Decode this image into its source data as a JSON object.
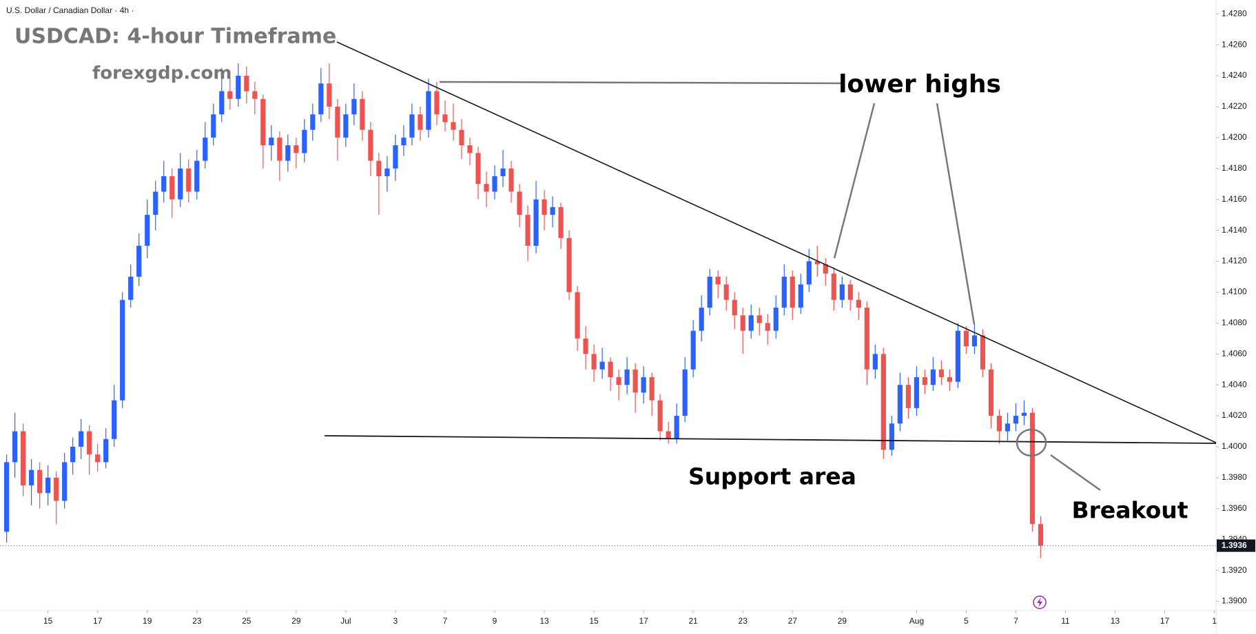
{
  "chart_data": {
    "type": "candlestick",
    "header": "U.S. Dollar / Canadian Dollar · 4h ·",
    "title": "USDCAD: 4-hour Timeframe",
    "subtitle": "forexgdp.com",
    "annotations": [
      "lower highs",
      "Support area",
      "Breakout"
    ],
    "up_color": "#2962ff",
    "down_color": "#ef5350",
    "xlim": [
      -0.8,
      146.2
    ],
    "ylim": [
      1.3894,
      1.4289
    ],
    "yticks": [
      {
        "value": 1.39,
        "label": "1.3900"
      },
      {
        "value": 1.392,
        "label": "1.3920"
      },
      {
        "value": 1.394,
        "label": "1.3940"
      },
      {
        "value": 1.396,
        "label": "1.3960"
      },
      {
        "value": 1.398,
        "label": "1.3980"
      },
      {
        "value": 1.4,
        "label": "1.4000"
      },
      {
        "value": 1.402,
        "label": "1.4020"
      },
      {
        "value": 1.404,
        "label": "1.4040"
      },
      {
        "value": 1.406,
        "label": "1.4060"
      },
      {
        "value": 1.408,
        "label": "1.4080"
      },
      {
        "value": 1.41,
        "label": "1.4100"
      },
      {
        "value": 1.412,
        "label": "1.4120"
      },
      {
        "value": 1.414,
        "label": "1.4140"
      },
      {
        "value": 1.416,
        "label": "1.4160"
      },
      {
        "value": 1.418,
        "label": "1.4180"
      },
      {
        "value": 1.42,
        "label": "1.4200"
      },
      {
        "value": 1.422,
        "label": "1.4220"
      },
      {
        "value": 1.424,
        "label": "1.4240"
      },
      {
        "value": 1.426,
        "label": "1.4260"
      },
      {
        "value": 1.428,
        "label": "1.4280"
      }
    ],
    "xticks": [
      {
        "value": 5,
        "label": "15"
      },
      {
        "value": 11,
        "label": "17"
      },
      {
        "value": 17,
        "label": "19"
      },
      {
        "value": 23,
        "label": "23"
      },
      {
        "value": 29,
        "label": "25"
      },
      {
        "value": 35,
        "label": "29"
      },
      {
        "value": 41,
        "label": "Jul"
      },
      {
        "value": 47,
        "label": "3"
      },
      {
        "value": 53,
        "label": "7"
      },
      {
        "value": 59,
        "label": "9"
      },
      {
        "value": 65,
        "label": "13"
      },
      {
        "value": 71,
        "label": "15"
      },
      {
        "value": 77,
        "label": "17"
      },
      {
        "value": 83,
        "label": "21"
      },
      {
        "value": 89,
        "label": "23"
      },
      {
        "value": 95,
        "label": "27"
      },
      {
        "value": 101,
        "label": "29"
      },
      {
        "value": 110,
        "label": "Aug"
      },
      {
        "value": 116,
        "label": "5"
      },
      {
        "value": 122,
        "label": "7"
      },
      {
        "value": 128,
        "label": "11"
      },
      {
        "value": 134,
        "label": "13"
      },
      {
        "value": 140,
        "label": "17"
      },
      {
        "value": 146,
        "label": "1"
      }
    ],
    "last_price": {
      "value": 1.3936,
      "label": "1.3936"
    },
    "candles": [
      [
        1.3945,
        1.3995,
        1.3938,
        1.399
      ],
      [
        1.399,
        1.4022,
        1.398,
        1.401
      ],
      [
        1.401,
        1.4015,
        1.3968,
        1.3975
      ],
      [
        1.3975,
        1.3992,
        1.3962,
        1.3985
      ],
      [
        1.3985,
        1.399,
        1.396,
        1.397
      ],
      [
        1.397,
        1.3988,
        1.3962,
        1.398
      ],
      [
        1.398,
        1.3984,
        1.395,
        1.3965
      ],
      [
        1.3965,
        1.3996,
        1.396,
        1.399
      ],
      [
        1.399,
        1.4006,
        1.3982,
        1.4
      ],
      [
        1.4,
        1.4018,
        1.3992,
        1.401
      ],
      [
        1.401,
        1.4014,
        1.3982,
        1.3995
      ],
      [
        1.3995,
        1.4002,
        1.3984,
        1.399
      ],
      [
        1.399,
        1.4012,
        1.3986,
        1.4005
      ],
      [
        1.4005,
        1.404,
        1.4,
        1.403
      ],
      [
        1.403,
        1.41,
        1.4025,
        1.4095
      ],
      [
        1.4095,
        1.4118,
        1.409,
        1.411
      ],
      [
        1.411,
        1.4138,
        1.4104,
        1.413
      ],
      [
        1.413,
        1.416,
        1.4122,
        1.415
      ],
      [
        1.415,
        1.4172,
        1.414,
        1.4165
      ],
      [
        1.4165,
        1.4185,
        1.4158,
        1.4175
      ],
      [
        1.4175,
        1.418,
        1.4148,
        1.416
      ],
      [
        1.416,
        1.419,
        1.4155,
        1.418
      ],
      [
        1.418,
        1.4186,
        1.4158,
        1.4165
      ],
      [
        1.4165,
        1.4192,
        1.416,
        1.4185
      ],
      [
        1.4185,
        1.421,
        1.418,
        1.42
      ],
      [
        1.42,
        1.4222,
        1.4195,
        1.4215
      ],
      [
        1.4215,
        1.4245,
        1.421,
        1.423
      ],
      [
        1.423,
        1.424,
        1.4218,
        1.4225
      ],
      [
        1.4225,
        1.4248,
        1.422,
        1.424
      ],
      [
        1.424,
        1.4246,
        1.4222,
        1.423
      ],
      [
        1.423,
        1.4236,
        1.4215,
        1.4225
      ],
      [
        1.4225,
        1.4228,
        1.418,
        1.4195
      ],
      [
        1.4195,
        1.4208,
        1.4185,
        1.42
      ],
      [
        1.42,
        1.4204,
        1.4172,
        1.4185
      ],
      [
        1.4185,
        1.4202,
        1.4178,
        1.4195
      ],
      [
        1.4195,
        1.42,
        1.418,
        1.419
      ],
      [
        1.419,
        1.4212,
        1.4184,
        1.4205
      ],
      [
        1.4205,
        1.4222,
        1.4198,
        1.4215
      ],
      [
        1.4215,
        1.4245,
        1.421,
        1.4235
      ],
      [
        1.4235,
        1.4248,
        1.4212,
        1.422
      ],
      [
        1.422,
        1.4225,
        1.4185,
        1.42
      ],
      [
        1.42,
        1.4222,
        1.4194,
        1.4215
      ],
      [
        1.4215,
        1.4235,
        1.4208,
        1.4225
      ],
      [
        1.4225,
        1.423,
        1.4198,
        1.4205
      ],
      [
        1.4205,
        1.421,
        1.4175,
        1.4185
      ],
      [
        1.4185,
        1.419,
        1.415,
        1.4175
      ],
      [
        1.4175,
        1.4188,
        1.4165,
        1.418
      ],
      [
        1.418,
        1.4202,
        1.4172,
        1.4195
      ],
      [
        1.4195,
        1.4208,
        1.4188,
        1.42
      ],
      [
        1.42,
        1.4222,
        1.4195,
        1.4215
      ],
      [
        1.4215,
        1.422,
        1.4198,
        1.4205
      ],
      [
        1.4205,
        1.4238,
        1.42,
        1.423
      ],
      [
        1.423,
        1.4236,
        1.4208,
        1.4215
      ],
      [
        1.4215,
        1.4224,
        1.4204,
        1.421
      ],
      [
        1.421,
        1.4222,
        1.4198,
        1.4205
      ],
      [
        1.4205,
        1.4212,
        1.4186,
        1.4195
      ],
      [
        1.4195,
        1.42,
        1.4182,
        1.419
      ],
      [
        1.419,
        1.4194,
        1.416,
        1.417
      ],
      [
        1.417,
        1.4178,
        1.4155,
        1.4165
      ],
      [
        1.4165,
        1.4182,
        1.416,
        1.4175
      ],
      [
        1.4175,
        1.4192,
        1.4168,
        1.418
      ],
      [
        1.418,
        1.4185,
        1.4158,
        1.4165
      ],
      [
        1.4165,
        1.417,
        1.4142,
        1.415
      ],
      [
        1.415,
        1.4156,
        1.412,
        1.413
      ],
      [
        1.413,
        1.4172,
        1.4125,
        1.416
      ],
      [
        1.416,
        1.4166,
        1.414,
        1.415
      ],
      [
        1.415,
        1.4162,
        1.4142,
        1.4155
      ],
      [
        1.4155,
        1.4158,
        1.4128,
        1.4135
      ],
      [
        1.4135,
        1.414,
        1.4095,
        1.41
      ],
      [
        1.41,
        1.4104,
        1.4062,
        1.407
      ],
      [
        1.407,
        1.4078,
        1.405,
        1.406
      ],
      [
        1.406,
        1.4066,
        1.4042,
        1.405
      ],
      [
        1.405,
        1.4064,
        1.4044,
        1.4055
      ],
      [
        1.4055,
        1.4058,
        1.4036,
        1.4045
      ],
      [
        1.4045,
        1.405,
        1.403,
        1.404
      ],
      [
        1.404,
        1.4058,
        1.4034,
        1.405
      ],
      [
        1.405,
        1.4054,
        1.4022,
        1.4035
      ],
      [
        1.4035,
        1.4052,
        1.4028,
        1.4045
      ],
      [
        1.4045,
        1.4048,
        1.402,
        1.403
      ],
      [
        1.403,
        1.4034,
        1.4004,
        1.401
      ],
      [
        1.401,
        1.4016,
        1.4002,
        1.4005
      ],
      [
        1.4005,
        1.4028,
        1.4002,
        1.402
      ],
      [
        1.402,
        1.4058,
        1.4016,
        1.405
      ],
      [
        1.405,
        1.4082,
        1.4045,
        1.4075
      ],
      [
        1.4075,
        1.4098,
        1.4068,
        1.409
      ],
      [
        1.409,
        1.4115,
        1.4085,
        1.411
      ],
      [
        1.411,
        1.4114,
        1.4096,
        1.4105
      ],
      [
        1.4105,
        1.411,
        1.4088,
        1.4095
      ],
      [
        1.4095,
        1.41,
        1.4076,
        1.4085
      ],
      [
        1.4085,
        1.409,
        1.406,
        1.4075
      ],
      [
        1.4075,
        1.4092,
        1.407,
        1.4085
      ],
      [
        1.4085,
        1.409,
        1.4072,
        1.408
      ],
      [
        1.408,
        1.4086,
        1.4066,
        1.4075
      ],
      [
        1.4075,
        1.4098,
        1.407,
        1.409
      ],
      [
        1.409,
        1.4118,
        1.4085,
        1.411
      ],
      [
        1.411,
        1.4114,
        1.4082,
        1.409
      ],
      [
        1.409,
        1.4112,
        1.4086,
        1.4105
      ],
      [
        1.4105,
        1.4128,
        1.41,
        1.412
      ],
      [
        1.412,
        1.413,
        1.411,
        1.4118
      ],
      [
        1.4118,
        1.4122,
        1.4104,
        1.4112
      ],
      [
        1.4112,
        1.4116,
        1.4088,
        1.4095
      ],
      [
        1.4095,
        1.411,
        1.409,
        1.4105
      ],
      [
        1.4105,
        1.4108,
        1.4088,
        1.4095
      ],
      [
        1.4095,
        1.41,
        1.4082,
        1.409
      ],
      [
        1.409,
        1.4094,
        1.404,
        1.405
      ],
      [
        1.405,
        1.4066,
        1.4044,
        1.406
      ],
      [
        1.406,
        1.4064,
        1.3992,
        1.3998
      ],
      [
        1.3998,
        1.402,
        1.3994,
        1.4015
      ],
      [
        1.4015,
        1.4048,
        1.401,
        1.404
      ],
      [
        1.404,
        1.4045,
        1.4018,
        1.4025
      ],
      [
        1.4025,
        1.4052,
        1.402,
        1.4045
      ],
      [
        1.4045,
        1.405,
        1.4034,
        1.404
      ],
      [
        1.404,
        1.4058,
        1.4036,
        1.405
      ],
      [
        1.405,
        1.4056,
        1.404,
        1.4045
      ],
      [
        1.4045,
        1.405,
        1.4036,
        1.4042
      ],
      [
        1.4042,
        1.408,
        1.4038,
        1.4075
      ],
      [
        1.4075,
        1.4078,
        1.406,
        1.4065
      ],
      [
        1.4065,
        1.408,
        1.406,
        1.4072
      ],
      [
        1.4072,
        1.4076,
        1.4045,
        1.405
      ],
      [
        1.405,
        1.4054,
        1.4012,
        1.402
      ],
      [
        1.402,
        1.4024,
        1.4002,
        1.401
      ],
      [
        1.401,
        1.4022,
        1.4004,
        1.4015
      ],
      [
        1.4015,
        1.4028,
        1.401,
        1.402
      ],
      [
        1.402,
        1.403,
        1.4014,
        1.4022
      ],
      [
        1.4022,
        1.4025,
        1.3945,
        1.395
      ],
      [
        1.395,
        1.3955,
        1.3928,
        1.3936
      ]
    ]
  }
}
